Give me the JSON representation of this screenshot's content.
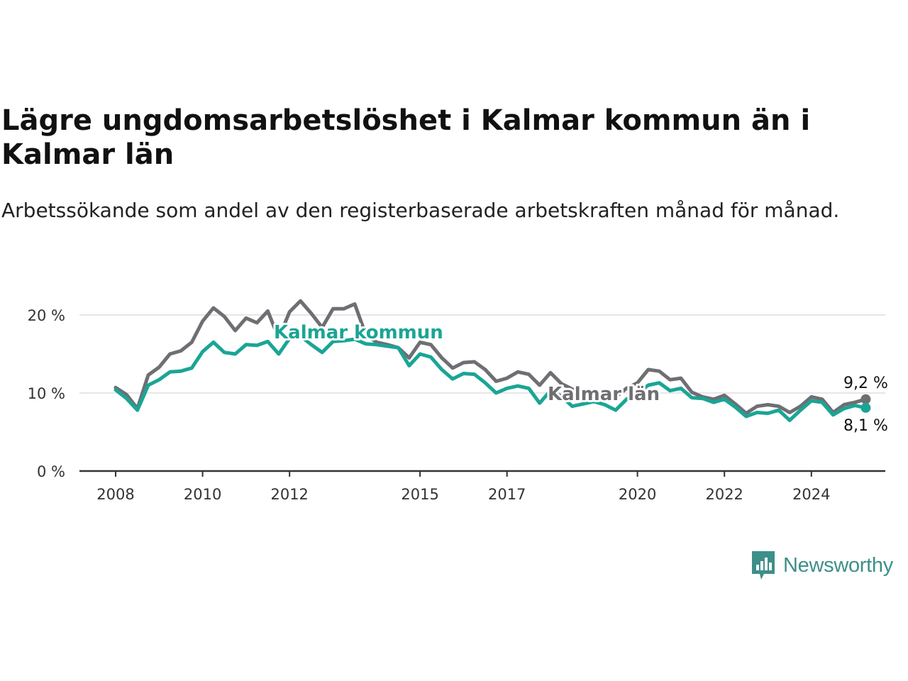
{
  "title": "Lägre ungdomsarbetslöshet i Kalmar kommun än i Kalmar län",
  "subtitle": "Arbetssökande som andel av den registerbaserade arbetskraften månad för månad.",
  "brand": {
    "name": "Newsworthy",
    "icon": "newsworthy-logo-icon"
  },
  "colors": {
    "kommun": "#1aa595",
    "lan": "#6e6e73",
    "grid": "#dddddd",
    "axis": "#333333"
  },
  "chart_data": {
    "type": "line",
    "title": "Lägre ungdomsarbetslöshet i Kalmar kommun än i Kalmar län",
    "x_ticks": [
      "2008",
      "2010",
      "2012",
      "2015",
      "2017",
      "2020",
      "2022",
      "2024"
    ],
    "y_ticks": [
      "0 %",
      "10 %",
      "20 %"
    ],
    "ylim": [
      0,
      22
    ],
    "xlim": [
      "2008-01",
      "2025-09"
    ],
    "grid": true,
    "series": [
      {
        "name": "Kalmar län",
        "color": "#6e6e73",
        "end_label": "9,2 %",
        "points": [
          [
            "2008-01",
            10.7
          ],
          [
            "2008-04",
            9.8
          ],
          [
            "2008-07",
            8.0
          ],
          [
            "2008-10",
            12.3
          ],
          [
            "2009-01",
            13.3
          ],
          [
            "2009-04",
            15.0
          ],
          [
            "2009-07",
            15.4
          ],
          [
            "2009-10",
            16.5
          ],
          [
            "2010-01",
            19.2
          ],
          [
            "2010-04",
            20.9
          ],
          [
            "2010-07",
            19.8
          ],
          [
            "2010-10",
            18.0
          ],
          [
            "2011-01",
            19.6
          ],
          [
            "2011-04",
            19.0
          ],
          [
            "2011-07",
            20.5
          ],
          [
            "2011-10",
            17.0
          ],
          [
            "2012-01",
            20.4
          ],
          [
            "2012-04",
            21.8
          ],
          [
            "2012-07",
            20.2
          ],
          [
            "2012-10",
            18.4
          ],
          [
            "2013-01",
            20.8
          ],
          [
            "2013-04",
            20.8
          ],
          [
            "2013-07",
            21.4
          ],
          [
            "2013-10",
            17.5
          ],
          [
            "2014-01",
            16.5
          ],
          [
            "2014-04",
            16.2
          ],
          [
            "2014-07",
            15.8
          ],
          [
            "2014-10",
            14.5
          ],
          [
            "2015-01",
            16.5
          ],
          [
            "2015-04",
            16.2
          ],
          [
            "2015-07",
            14.5
          ],
          [
            "2015-10",
            13.2
          ],
          [
            "2016-01",
            13.9
          ],
          [
            "2016-04",
            14.0
          ],
          [
            "2016-07",
            13.0
          ],
          [
            "2016-10",
            11.5
          ],
          [
            "2017-01",
            11.9
          ],
          [
            "2017-04",
            12.7
          ],
          [
            "2017-07",
            12.4
          ],
          [
            "2017-10",
            11.0
          ],
          [
            "2018-01",
            12.6
          ],
          [
            "2018-04",
            11.2
          ],
          [
            "2018-07",
            10.5
          ],
          [
            "2018-10",
            9.5
          ],
          [
            "2019-01",
            9.8
          ],
          [
            "2019-04",
            9.5
          ],
          [
            "2019-07",
            9.5
          ],
          [
            "2019-10",
            10.6
          ],
          [
            "2020-01",
            11.3
          ],
          [
            "2020-04",
            13.0
          ],
          [
            "2020-07",
            12.8
          ],
          [
            "2020-10",
            11.7
          ],
          [
            "2021-01",
            11.9
          ],
          [
            "2021-04",
            10.1
          ],
          [
            "2021-07",
            9.5
          ],
          [
            "2021-10",
            9.2
          ],
          [
            "2022-01",
            9.7
          ],
          [
            "2022-04",
            8.6
          ],
          [
            "2022-07",
            7.4
          ],
          [
            "2022-10",
            8.3
          ],
          [
            "2023-01",
            8.5
          ],
          [
            "2023-04",
            8.3
          ],
          [
            "2023-07",
            7.5
          ],
          [
            "2023-10",
            8.3
          ],
          [
            "2024-01",
            9.5
          ],
          [
            "2024-04",
            9.2
          ],
          [
            "2024-07",
            7.5
          ],
          [
            "2024-10",
            8.5
          ],
          [
            "2025-01",
            8.8
          ],
          [
            "2025-04",
            9.2
          ]
        ]
      },
      {
        "name": "Kalmar kommun",
        "color": "#1aa595",
        "end_label": "8,1 %",
        "points": [
          [
            "2008-01",
            10.4
          ],
          [
            "2008-04",
            9.3
          ],
          [
            "2008-07",
            7.8
          ],
          [
            "2008-10",
            11.0
          ],
          [
            "2009-01",
            11.7
          ],
          [
            "2009-04",
            12.7
          ],
          [
            "2009-07",
            12.8
          ],
          [
            "2009-10",
            13.2
          ],
          [
            "2010-01",
            15.3
          ],
          [
            "2010-04",
            16.5
          ],
          [
            "2010-07",
            15.2
          ],
          [
            "2010-10",
            15.0
          ],
          [
            "2011-01",
            16.2
          ],
          [
            "2011-04",
            16.1
          ],
          [
            "2011-07",
            16.6
          ],
          [
            "2011-10",
            15.0
          ],
          [
            "2012-01",
            17.0
          ],
          [
            "2012-04",
            17.3
          ],
          [
            "2012-07",
            16.2
          ],
          [
            "2012-10",
            15.2
          ],
          [
            "2013-01",
            16.6
          ],
          [
            "2013-04",
            16.7
          ],
          [
            "2013-07",
            16.9
          ],
          [
            "2013-10",
            16.3
          ],
          [
            "2014-01",
            16.2
          ],
          [
            "2014-04",
            16.0
          ],
          [
            "2014-07",
            15.8
          ],
          [
            "2014-10",
            13.5
          ],
          [
            "2015-01",
            15.0
          ],
          [
            "2015-04",
            14.6
          ],
          [
            "2015-07",
            13.0
          ],
          [
            "2015-10",
            11.8
          ],
          [
            "2016-01",
            12.5
          ],
          [
            "2016-04",
            12.4
          ],
          [
            "2016-07",
            11.3
          ],
          [
            "2016-10",
            10.0
          ],
          [
            "2017-01",
            10.6
          ],
          [
            "2017-04",
            10.9
          ],
          [
            "2017-07",
            10.6
          ],
          [
            "2017-10",
            8.7
          ],
          [
            "2018-01",
            10.3
          ],
          [
            "2018-04",
            9.6
          ],
          [
            "2018-07",
            8.3
          ],
          [
            "2018-10",
            8.6
          ],
          [
            "2019-01",
            8.9
          ],
          [
            "2019-04",
            8.5
          ],
          [
            "2019-07",
            7.8
          ],
          [
            "2019-10",
            9.2
          ],
          [
            "2020-01",
            10.0
          ],
          [
            "2020-04",
            11.0
          ],
          [
            "2020-07",
            11.3
          ],
          [
            "2020-10",
            10.3
          ],
          [
            "2021-01",
            10.6
          ],
          [
            "2021-04",
            9.4
          ],
          [
            "2021-07",
            9.3
          ],
          [
            "2021-10",
            8.8
          ],
          [
            "2022-01",
            9.2
          ],
          [
            "2022-04",
            8.2
          ],
          [
            "2022-07",
            7.0
          ],
          [
            "2022-10",
            7.5
          ],
          [
            "2023-01",
            7.4
          ],
          [
            "2023-04",
            7.8
          ],
          [
            "2023-07",
            6.5
          ],
          [
            "2023-10",
            7.8
          ],
          [
            "2024-01",
            9.0
          ],
          [
            "2024-04",
            8.8
          ],
          [
            "2024-07",
            7.2
          ],
          [
            "2024-10",
            8.0
          ],
          [
            "2025-01",
            8.4
          ],
          [
            "2025-04",
            8.1
          ]
        ]
      }
    ],
    "inline_labels": [
      "Kalmar kommun",
      "Kalmar län"
    ]
  }
}
